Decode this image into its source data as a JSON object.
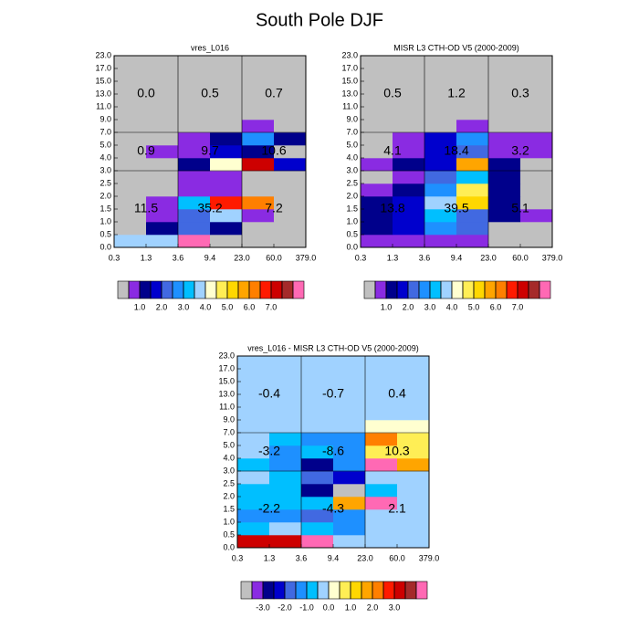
{
  "title": "South Pole DJF",
  "chart_data": [
    {
      "type": "heatmap",
      "title": "vres_L016",
      "x_edges": [
        "0.3",
        "1.3",
        "3.6",
        "9.4",
        "23.0",
        "60.0",
        "379.0"
      ],
      "y_edges": [
        "0.0",
        "0.5",
        "1.0",
        "1.5",
        "2.0",
        "2.5",
        "3.0",
        "4.0",
        "5.0",
        "7.0",
        "9.0",
        "11.0",
        "13.0",
        "15.0",
        "17.0",
        "23.0"
      ],
      "values": [
        [
          3.7,
          3.7,
          8.5,
          0.3,
          0.0,
          0.0
        ],
        [
          0.3,
          1.2,
          2.2,
          1.2,
          0.3,
          0.0
        ],
        [
          0.3,
          0.7,
          2.2,
          3.7,
          0.7,
          0.0
        ],
        [
          0.3,
          0.7,
          3.2,
          6.7,
          6.2,
          0.3
        ],
        [
          0.3,
          0.3,
          0.7,
          0.7,
          0.3,
          0.0
        ],
        [
          0.0,
          0.3,
          0.7,
          0.7,
          0.3,
          0.0
        ],
        [
          0.0,
          0.3,
          1.2,
          4.2,
          7.2,
          1.7
        ],
        [
          0.0,
          0.7,
          0.7,
          1.7,
          1.2,
          0.3
        ],
        [
          0.0,
          0.3,
          0.7,
          1.2,
          2.7,
          1.2
        ],
        [
          0.0,
          0.0,
          0.3,
          0.3,
          0.7,
          0.0
        ],
        [
          0.0,
          0.0,
          0.0,
          0.0,
          0.0,
          0.0
        ],
        [
          0.0,
          0.0,
          0.0,
          0.0,
          0.0,
          0.0
        ],
        [
          0.0,
          0.0,
          0.0,
          0.0,
          0.0,
          0.0
        ],
        [
          0.0,
          0.0,
          0.0,
          0.0,
          0.0,
          0.0
        ],
        [
          0.0,
          0.0,
          0.0,
          0.0,
          0.0,
          0.0
        ]
      ],
      "box_labels": [
        [
          "0.0",
          "0.5",
          "0.7"
        ],
        [
          "0.9",
          "9.7",
          "10.6"
        ],
        [
          "11.5",
          "35.2",
          "7.2"
        ]
      ],
      "colorbar": {
        "colors": [
          "#c0c0c0",
          "#8a2be2",
          "#00008b",
          "#0000cd",
          "#4169e1",
          "#1e90ff",
          "#00bfff",
          "#a0d2ff",
          "#ffffd0",
          "#ffee55",
          "#ffd700",
          "#ffa500",
          "#ff7f00",
          "#ff1a00",
          "#cd0000",
          "#a52a2a",
          "#ff69b4"
        ],
        "levels": [
          0.5,
          1,
          1.5,
          2,
          2.5,
          3,
          3.5,
          4,
          4.5,
          5,
          5.5,
          6,
          6.5,
          7,
          7.5,
          8
        ],
        "ticks": [
          {
            "value": 1,
            "label": "1.0"
          },
          {
            "value": 2,
            "label": "2.0"
          },
          {
            "value": 3,
            "label": "3.0"
          },
          {
            "value": 4,
            "label": "4.0"
          },
          {
            "value": 5,
            "label": "5.0"
          },
          {
            "value": 6,
            "label": "6.0"
          },
          {
            "value": 7,
            "label": "7.0"
          }
        ]
      }
    },
    {
      "type": "heatmap",
      "title": "MISR L3 CTH-OD V5 (2000-2009)",
      "x_edges": [
        "0.3",
        "1.3",
        "3.6",
        "9.4",
        "23.0",
        "60.0",
        "379.0"
      ],
      "y_edges": [
        "0.0",
        "0.5",
        "1.0",
        "1.5",
        "2.0",
        "2.5",
        "3.0",
        "4.0",
        "5.0",
        "7.0",
        "9.0",
        "11.0",
        "13.0",
        "15.0",
        "17.0",
        "23.0"
      ],
      "values": [
        [
          0.7,
          0.7,
          0.7,
          0.7,
          0.3,
          0.0
        ],
        [
          1.2,
          1.7,
          2.7,
          2.2,
          0.3,
          0.0
        ],
        [
          1.2,
          1.7,
          3.2,
          2.2,
          1.2,
          0.7
        ],
        [
          1.2,
          1.7,
          3.7,
          5.2,
          1.2,
          0.3
        ],
        [
          0.7,
          1.2,
          2.7,
          4.7,
          1.2,
          0.3
        ],
        [
          0.3,
          0.7,
          2.2,
          3.2,
          1.2,
          0.3
        ],
        [
          0.7,
          1.2,
          1.7,
          5.7,
          1.2,
          0.3
        ],
        [
          0.3,
          0.7,
          1.7,
          2.2,
          0.7,
          0.7
        ],
        [
          0.0,
          0.7,
          1.7,
          2.7,
          0.7,
          0.7
        ],
        [
          0.0,
          0.0,
          0.3,
          0.7,
          0.3,
          0.0
        ],
        [
          0.0,
          0.0,
          0.0,
          0.0,
          0.0,
          0.0
        ],
        [
          0.0,
          0.0,
          0.0,
          0.0,
          0.0,
          0.0
        ],
        [
          0.0,
          0.0,
          0.0,
          0.0,
          0.0,
          0.0
        ],
        [
          0.0,
          0.0,
          0.0,
          0.0,
          0.0,
          0.0
        ],
        [
          0.0,
          0.0,
          0.0,
          0.0,
          0.0,
          0.0
        ]
      ],
      "box_labels": [
        [
          "0.5",
          "1.2",
          "0.3"
        ],
        [
          "4.1",
          "18.4",
          "3.2"
        ],
        [
          "13.8",
          "39.5",
          "5.1"
        ]
      ],
      "colorbar": {
        "colors": [
          "#c0c0c0",
          "#8a2be2",
          "#00008b",
          "#0000cd",
          "#4169e1",
          "#1e90ff",
          "#00bfff",
          "#a0d2ff",
          "#ffffd0",
          "#ffee55",
          "#ffd700",
          "#ffa500",
          "#ff7f00",
          "#ff1a00",
          "#cd0000",
          "#a52a2a",
          "#ff69b4"
        ],
        "levels": [
          0.5,
          1,
          1.5,
          2,
          2.5,
          3,
          3.5,
          4,
          4.5,
          5,
          5.5,
          6,
          6.5,
          7,
          7.5,
          8
        ],
        "ticks": [
          {
            "value": 1,
            "label": "1.0"
          },
          {
            "value": 2,
            "label": "2.0"
          },
          {
            "value": 3,
            "label": "3.0"
          },
          {
            "value": 4,
            "label": "4.0"
          },
          {
            "value": 5,
            "label": "5.0"
          },
          {
            "value": 6,
            "label": "6.0"
          },
          {
            "value": 7,
            "label": "7.0"
          }
        ]
      }
    },
    {
      "type": "heatmap",
      "title": "vres_L016 - MISR L3 CTH-OD V5 (2000-2009)",
      "x_edges": [
        "0.3",
        "1.3",
        "3.6",
        "9.4",
        "23.0",
        "60.0",
        "379.0"
      ],
      "y_edges": [
        "0.0",
        "0.5",
        "1.0",
        "1.5",
        "2.0",
        "2.5",
        "3.0",
        "4.0",
        "5.0",
        "7.0",
        "9.0",
        "11.0",
        "13.0",
        "15.0",
        "17.0",
        "23.0"
      ],
      "values": [
        [
          3.2,
          3.2,
          4.3,
          -0.2,
          -0.2,
          -0.2
        ],
        [
          -0.7,
          -0.2,
          -0.7,
          -1.2,
          -0.2,
          -0.2
        ],
        [
          -1.2,
          -1.2,
          -1.7,
          -1.2,
          -0.2,
          -0.2
        ],
        [
          -0.7,
          -0.7,
          -0.7,
          1.7,
          4.3,
          -0.2
        ],
        [
          -0.7,
          -0.7,
          -2.7,
          -3.8,
          -0.7,
          -0.2
        ],
        [
          -0.2,
          -0.7,
          -1.7,
          -2.2,
          -0.2,
          -0.2
        ],
        [
          -0.7,
          -1.2,
          -2.7,
          -1.2,
          4.3,
          1.7
        ],
        [
          -0.2,
          -1.2,
          -0.7,
          -1.2,
          0.7,
          0.7
        ],
        [
          -0.2,
          -0.7,
          -1.2,
          -1.2,
          2.2,
          0.7
        ],
        [
          -0.2,
          -0.2,
          -0.2,
          -0.2,
          0.2,
          0.2
        ],
        [
          -0.2,
          -0.2,
          -0.2,
          -0.2,
          -0.2,
          -0.2
        ],
        [
          -0.2,
          -0.2,
          -0.2,
          -0.2,
          -0.2,
          -0.2
        ],
        [
          -0.2,
          -0.2,
          -0.2,
          -0.2,
          -0.2,
          -0.2
        ],
        [
          -0.2,
          -0.2,
          -0.2,
          -0.2,
          -0.2,
          -0.2
        ],
        [
          -0.2,
          -0.2,
          -0.2,
          -0.2,
          -0.2,
          -0.2
        ]
      ],
      "box_labels": [
        [
          "-0.4",
          "-0.7",
          "0.4"
        ],
        [
          "-3.2",
          "-8.6",
          "10.3"
        ],
        [
          "-2.2",
          "-4.3",
          "2.1"
        ]
      ],
      "colorbar": {
        "colors": [
          "#c0c0c0",
          "#8a2be2",
          "#00008b",
          "#0000cd",
          "#4169e1",
          "#1e90ff",
          "#00bfff",
          "#a0d2ff",
          "#ffffd0",
          "#ffee55",
          "#ffd700",
          "#ffa500",
          "#ff7f00",
          "#ff1a00",
          "#cd0000",
          "#a52a2a",
          "#ff69b4"
        ],
        "levels": [
          -3.5,
          -3,
          -2.5,
          -2,
          -1.5,
          -1,
          -0.5,
          0,
          0.5,
          1,
          1.5,
          2,
          2.5,
          3,
          3.5,
          4
        ],
        "ticks": [
          {
            "value": -3,
            "label": "-3.0"
          },
          {
            "value": -2,
            "label": "-2.0"
          },
          {
            "value": -1,
            "label": "-1.0"
          },
          {
            "value": 0,
            "label": "0.0"
          },
          {
            "value": 1,
            "label": "1.0"
          },
          {
            "value": 2,
            "label": "2.0"
          },
          {
            "value": 3,
            "label": "3.0"
          }
        ]
      }
    }
  ]
}
